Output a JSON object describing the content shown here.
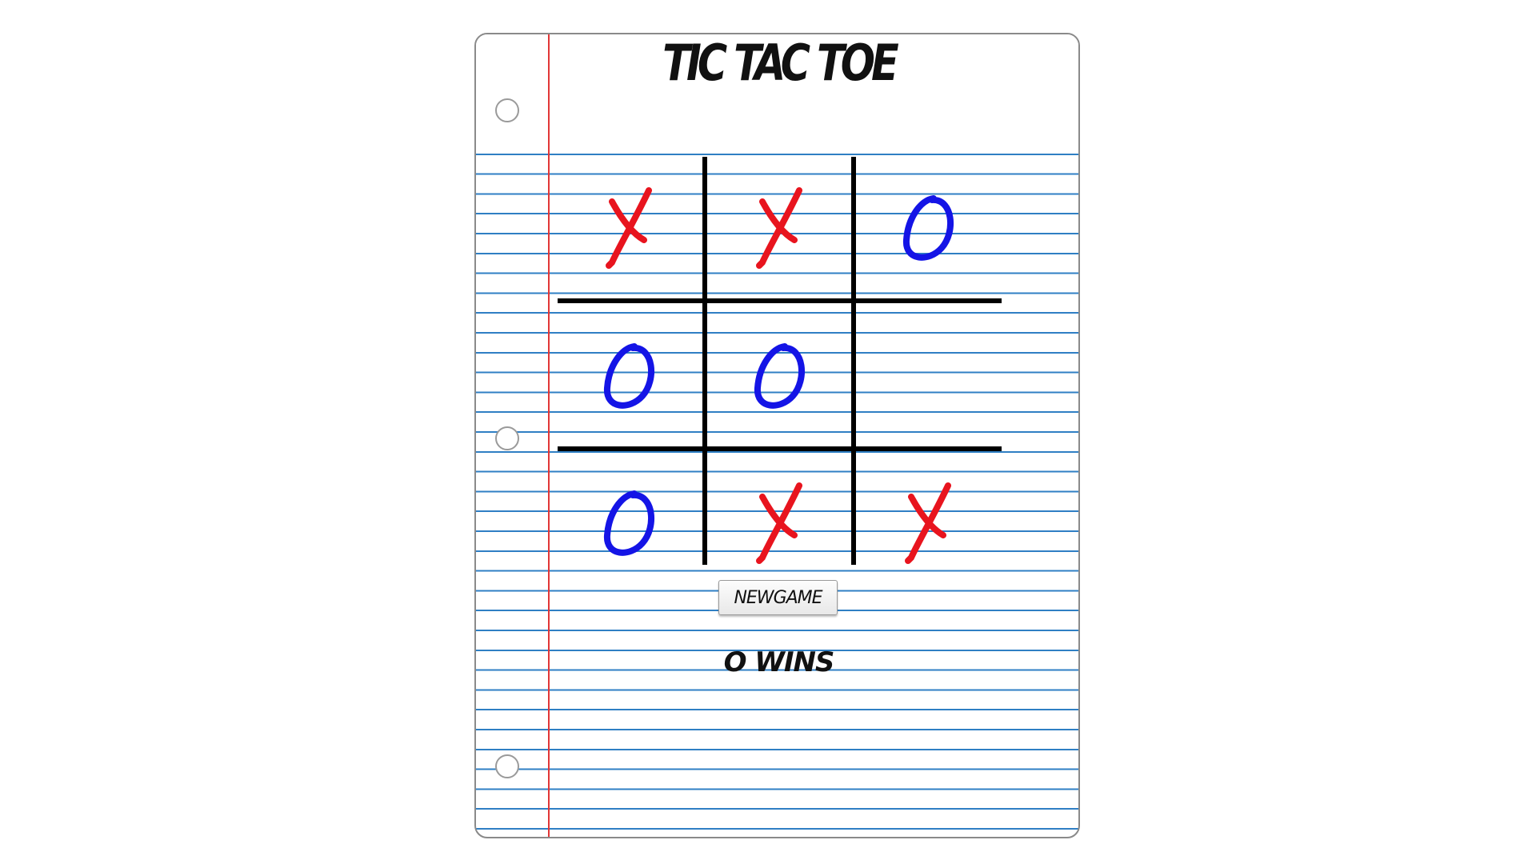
{
  "title": "TIC TAC TOE",
  "new_game_label": "NEWGAME",
  "status_text": "O WINS",
  "colors": {
    "x": "#e8141e",
    "o": "#1414e6",
    "grid": "#000000",
    "rule_lines": "#2f7fc4",
    "margin_line": "#e23636"
  },
  "board": [
    [
      "X",
      "X",
      "O"
    ],
    [
      "O",
      "O",
      ""
    ],
    [
      "O",
      "X",
      "X"
    ]
  ]
}
